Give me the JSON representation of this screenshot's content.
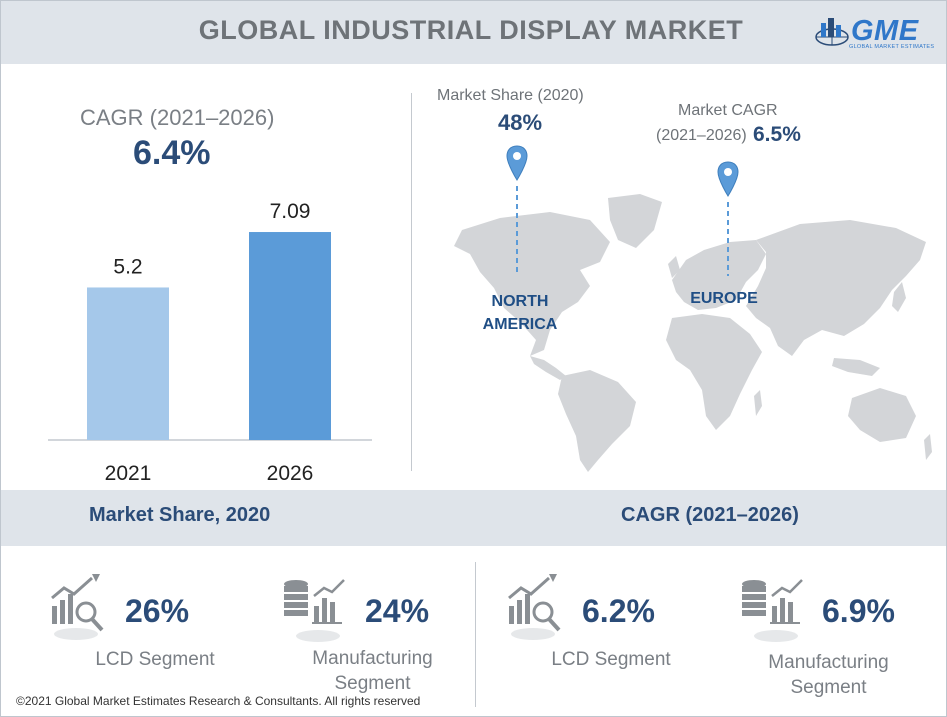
{
  "header": {
    "title": "GLOBAL INDUSTRIAL DISPLAY MARKET",
    "logo_text": "GME",
    "logo_subtext": "GLOBAL MARKET ESTIMATES"
  },
  "cagr_summary": {
    "label": "CAGR (2021–2026)",
    "value": "6.4%"
  },
  "chart_data": {
    "type": "bar",
    "categories": [
      "2021",
      "2026"
    ],
    "values": [
      5.2,
      7.09
    ],
    "value_labels": [
      "5.2",
      "7.09"
    ],
    "colors": [
      "#a5c8ea",
      "#5b9bd8"
    ],
    "ylim": [
      0,
      7.5
    ],
    "grid": false,
    "title": "",
    "xlabel": "",
    "ylabel": ""
  },
  "map": {
    "north_america": {
      "label": "Market Share (2020)",
      "value": "48%",
      "region_line1": "NORTH",
      "region_line2": "AMERICA"
    },
    "europe": {
      "label_line1": "Market CAGR",
      "label_line2": "(2021–2026)",
      "value": "6.5%",
      "region": "EUROPE"
    }
  },
  "bands": {
    "left": "Market Share, 2020",
    "right": "CAGR (2021–2026)"
  },
  "stats": {
    "share_lcd": {
      "value": "26%",
      "label": "LCD Segment"
    },
    "share_mfg": {
      "value": "24%",
      "label_line1": "Manufacturing",
      "label_line2": "Segment"
    },
    "cagr_lcd": {
      "value": "6.2%",
      "label": "LCD Segment"
    },
    "cagr_mfg": {
      "value": "6.9%",
      "label_line1": "Manufacturing",
      "label_line2": "Segment"
    }
  },
  "footer": "©2021 Global Market Estimates Research & Consultants. All rights reserved",
  "colors": {
    "accent": "#2b4c78",
    "pin": "#5b9bd8",
    "map": "#d3d5d8",
    "band": "#dfe4ea"
  }
}
